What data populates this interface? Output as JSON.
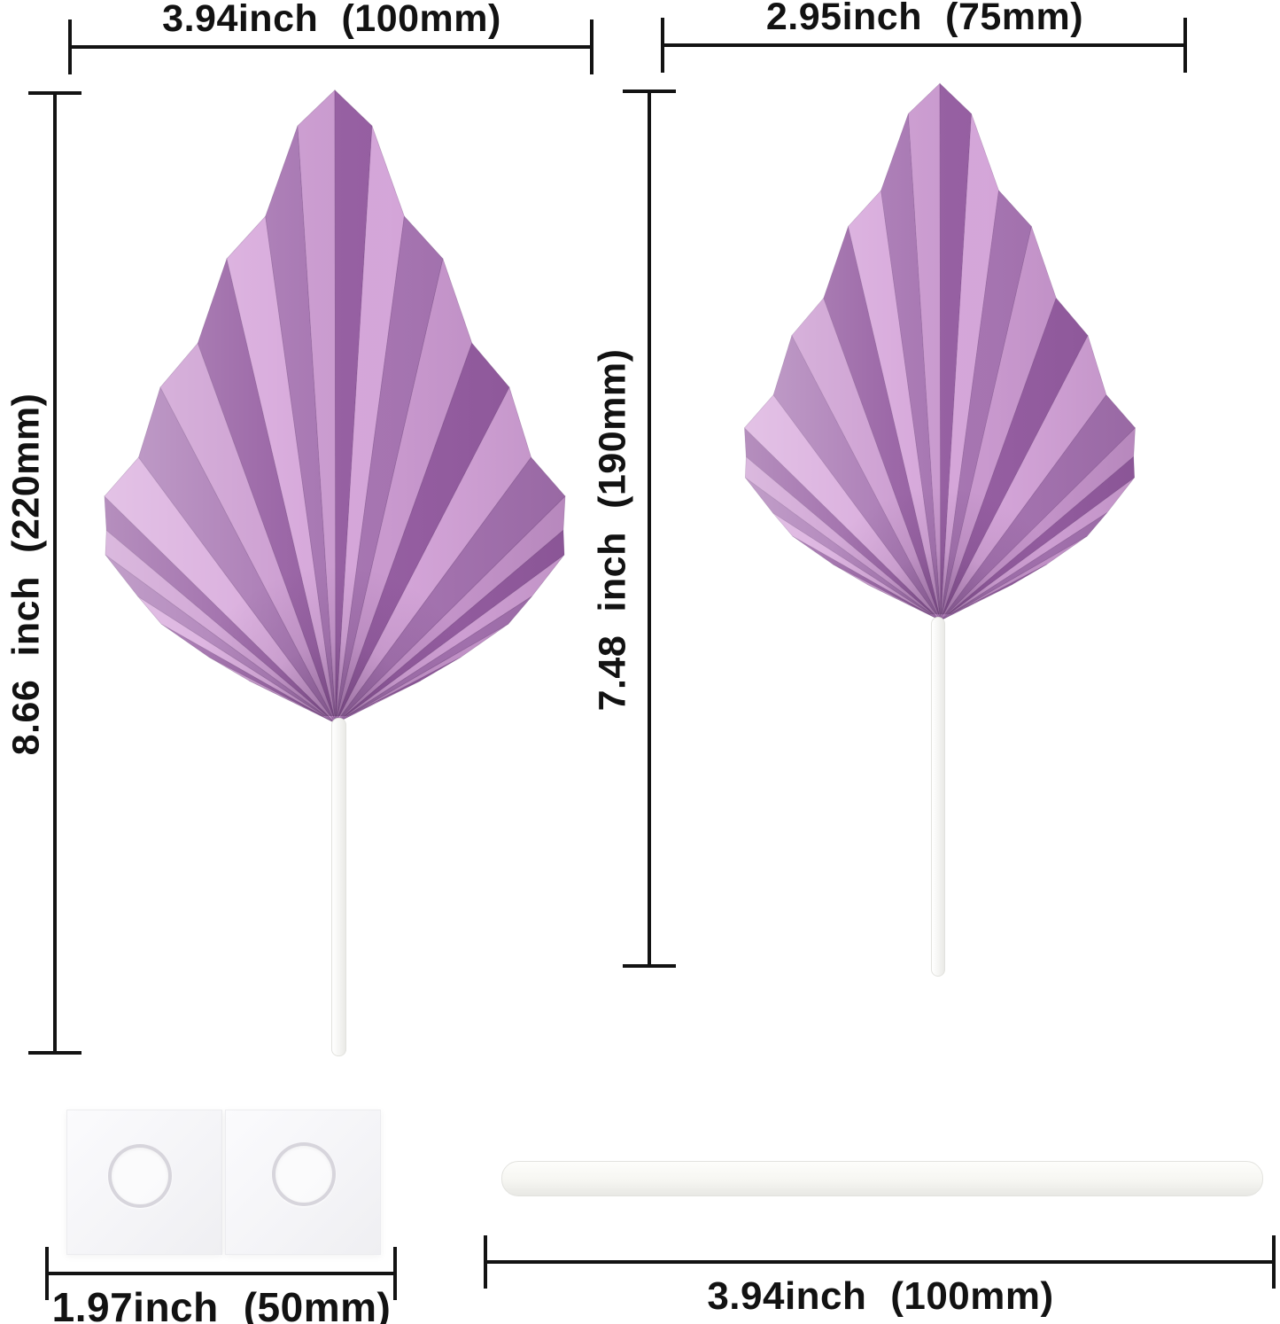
{
  "dimensions": {
    "large_leaf_width": "3.94inch (100mm)",
    "small_leaf_width": "2.95inch (75mm)",
    "large_leaf_height": "8.66 inch (220mm)",
    "small_leaf_height": "7.48 inch (190mm)",
    "glue_pad_width": "1.97inch (50mm)",
    "stick_length": "3.94inch (100mm)"
  },
  "objects": {
    "large_leaf": "pleated-palm-spear-leaf-large",
    "small_leaf": "pleated-palm-spear-leaf-small",
    "glue_pad": "double-sided-adhesive-glue-dots",
    "stick": "white-cake-topper-stick"
  },
  "colors": {
    "leaf_light": "#d7a8db",
    "leaf_dark": "#a776b2",
    "leaf_mid": "#cb9bd0",
    "leaf_deep": "#965fa2",
    "dimension_line": "#131313",
    "background": "#ffffff"
  }
}
